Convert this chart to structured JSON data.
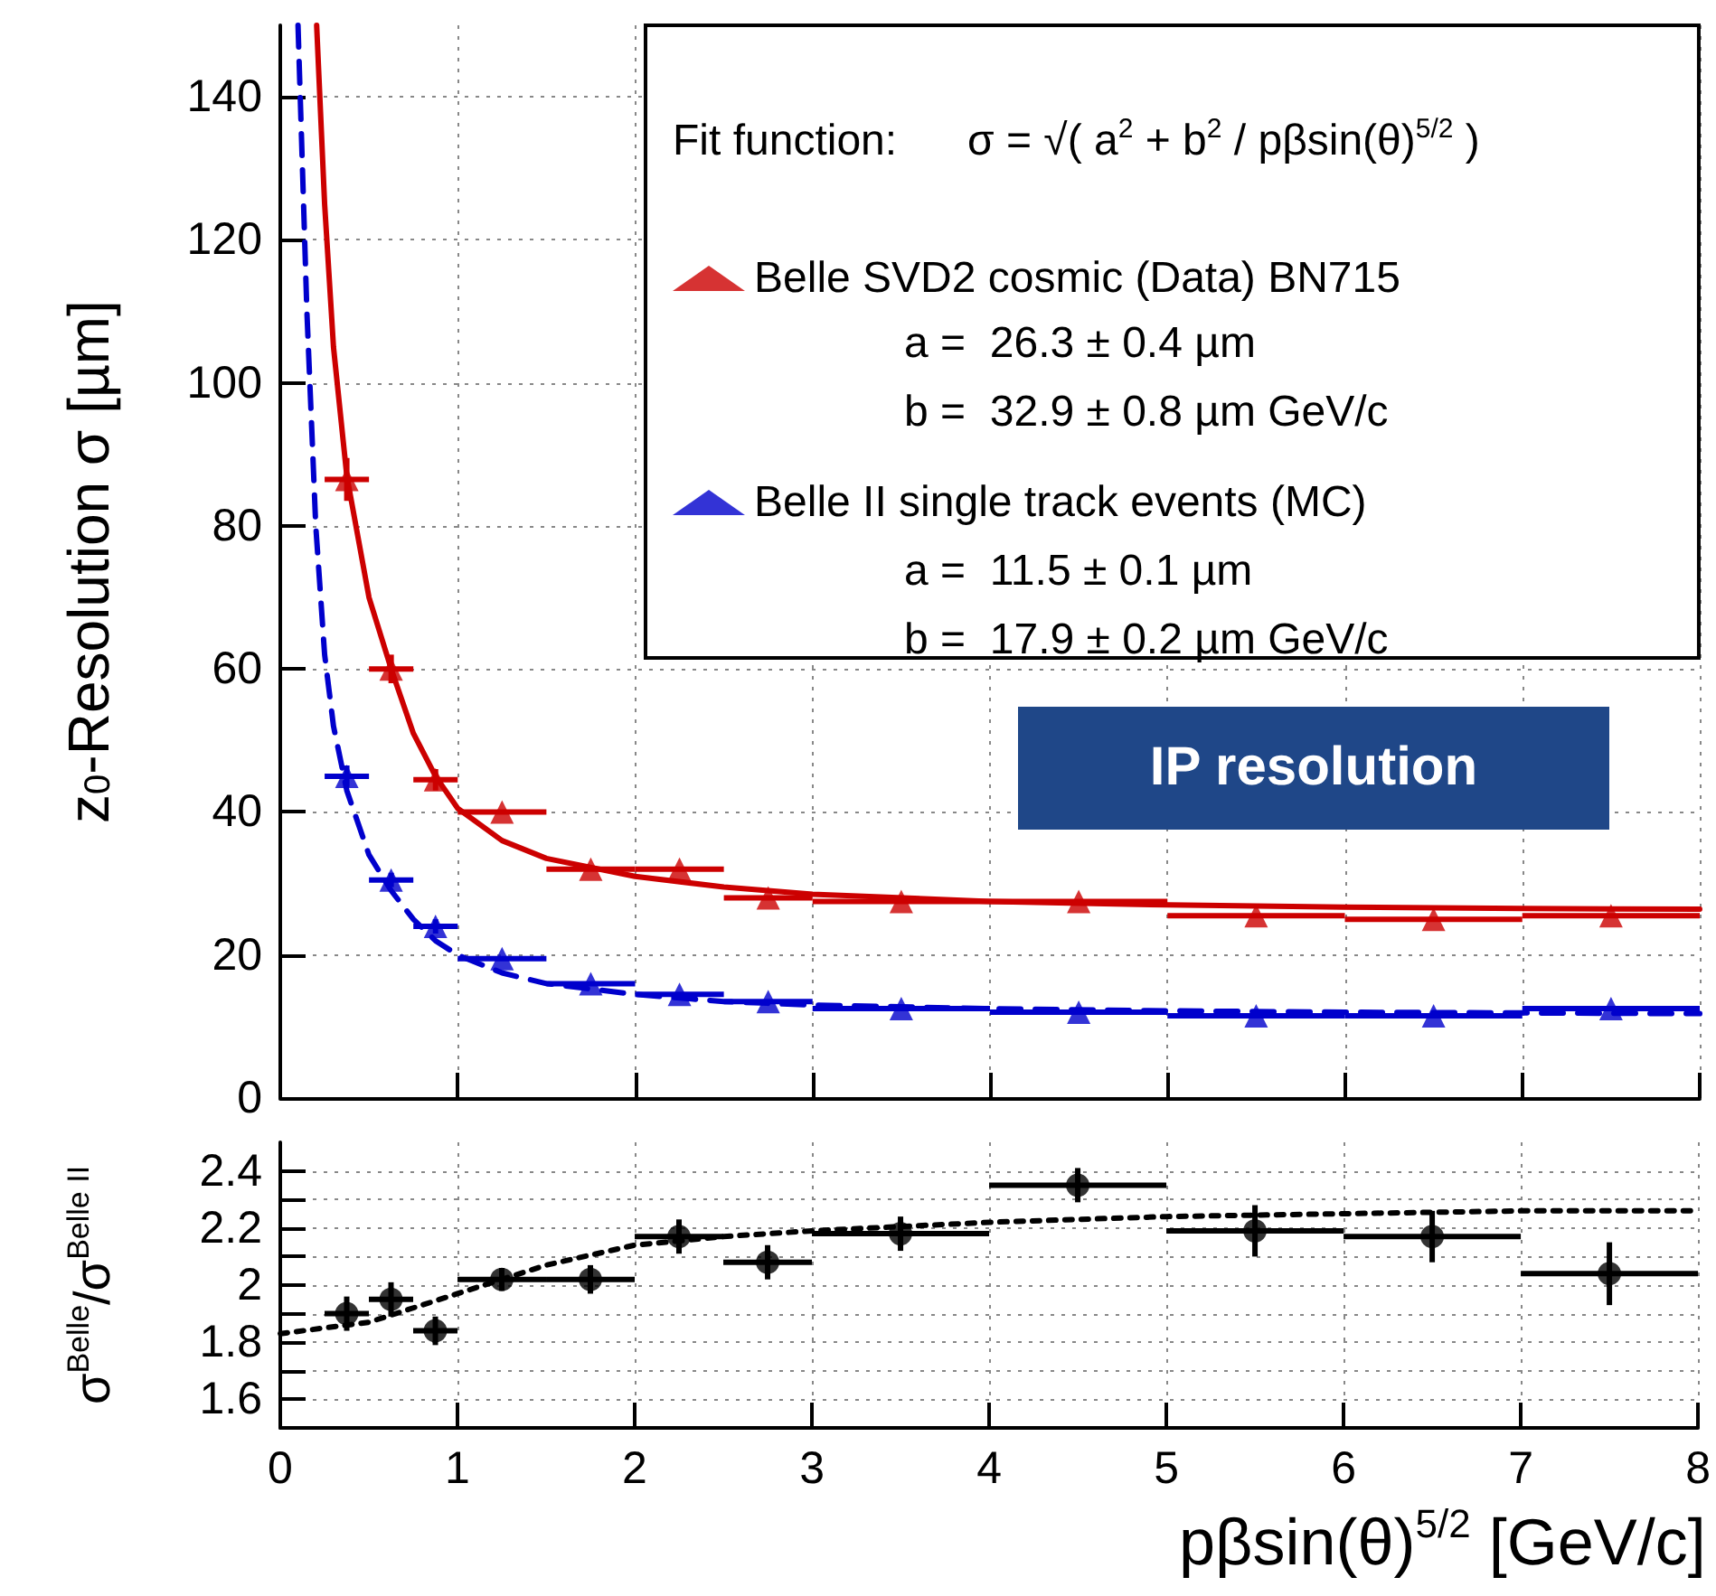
{
  "chart_data": [
    {
      "type": "scatter",
      "ylabel": "z$_{0}$-Resolution σ [µm]",
      "xlim": [
        0,
        8
      ],
      "xticks": [
        0,
        1,
        2,
        3,
        4,
        5,
        6,
        7,
        8
      ],
      "ylim": [
        0,
        150
      ],
      "yticks": [
        0,
        20,
        40,
        60,
        80,
        100,
        120,
        140
      ],
      "tick_labels": "y",
      "grid": true,
      "legend": "top right",
      "annotations": [
        "Fit function:",
        "σ = √( a$^{2}$ + b$^{2}$ / pβsin(θ)$^{5/2}$ )",
        "a =  26.3 ± 0.4 µm",
        "b =  32.9 ± 0.8 µm GeV/c",
        "a =  11.5 ± 0.1 µm",
        "b =  17.9 ± 0.2 µm GeV/c",
        "IP resolution"
      ],
      "series": [
        {
          "name": "Belle SVD2 cosmic (Data) BN715",
          "color": "#cc0000",
          "marker": "triangle",
          "x": [
            0.375,
            0.625,
            0.875,
            1.25,
            1.75,
            2.25,
            2.75,
            3.5,
            4.5,
            5.5,
            6.5,
            7.5
          ],
          "values": [
            86.5,
            60,
            44.5,
            40,
            32,
            32,
            28,
            27.5,
            27.5,
            25.5,
            25,
            25.5
          ],
          "errors": [
            3,
            2,
            1.5,
            null,
            null,
            null,
            null,
            null,
            null,
            null,
            null,
            null
          ],
          "xerrors": [
            0.125,
            0.125,
            0.125,
            0.25,
            0.25,
            0.25,
            0.25,
            0.5,
            0.5,
            0.5,
            0.5,
            0.5
          ]
        },
        {
          "name": "Belle II single track events (MC)",
          "color": "#0000cc",
          "marker": "triangle",
          "x": [
            0.375,
            0.625,
            0.875,
            1.25,
            1.75,
            2.25,
            2.75,
            3.5,
            4.5,
            5.5,
            6.5,
            7.5
          ],
          "values": [
            45,
            30.5,
            24,
            19.5,
            16,
            14.5,
            13.5,
            12.5,
            12,
            11.5,
            11.5,
            12.5
          ],
          "errors": [
            1.5,
            1,
            1,
            null,
            null,
            null,
            null,
            null,
            null,
            null,
            null,
            null
          ],
          "xerrors": [
            0.125,
            0.125,
            0.125,
            0.25,
            0.25,
            0.25,
            0.25,
            0.5,
            0.5,
            0.5,
            0.5,
            0.5
          ]
        },
        {
          "type": "line",
          "color": "#cc0000",
          "marker": "none",
          "line_style": "solid",
          "x": [
            0.205,
            0.25,
            0.3,
            0.375,
            0.5,
            0.625,
            0.75,
            0.875,
            1,
            1.25,
            1.5,
            2,
            2.5,
            3,
            4,
            5,
            6,
            7,
            8
          ],
          "values": [
            150,
            125,
            105,
            87,
            70,
            60,
            51,
            45,
            40.5,
            36,
            33.5,
            31,
            29.5,
            28.5,
            27.5,
            27,
            26.7,
            26.5,
            26.4
          ]
        },
        {
          "type": "line",
          "color": "#0000cc",
          "marker": "none",
          "line_style": "dashed",
          "x": [
            0.1,
            0.15,
            0.2,
            0.25,
            0.3,
            0.375,
            0.5,
            0.625,
            0.75,
            0.875,
            1,
            1.25,
            1.5,
            2,
            2.5,
            3,
            4,
            5,
            6,
            8
          ],
          "values": [
            150,
            110,
            80,
            62,
            52,
            43,
            34,
            29,
            25,
            22,
            20,
            17.5,
            16,
            14.5,
            13.5,
            13,
            12.5,
            12.2,
            12,
            11.8
          ]
        }
      ]
    },
    {
      "type": "scatter",
      "xlabel": "pβsin(θ)$^{5/2}$ [GeV/c]",
      "ylabel": "σ$^{Belle}$/σ$^{Belle II}$",
      "xlim": [
        0,
        8
      ],
      "xticks": [
        0,
        1,
        2,
        3,
        4,
        5,
        6,
        7,
        8
      ],
      "ylim": [
        1.5,
        2.5
      ],
      "yticks": [
        1.6,
        {
          "value": 1.7,
          "label": null
        },
        1.8,
        {
          "value": 1.9,
          "label": null
        },
        2,
        {
          "value": 2.1,
          "label": null
        },
        2.2,
        {
          "value": 2.3,
          "label": null
        },
        2.4
      ],
      "grid": true,
      "series": [
        {
          "color": "#000000",
          "marker": "circle",
          "x": [
            0.375,
            0.625,
            0.875,
            1.25,
            1.75,
            2.25,
            2.75,
            3.5,
            4.5,
            5.5,
            6.5,
            7.5
          ],
          "values": [
            1.9,
            1.95,
            1.84,
            2.02,
            2.02,
            2.17,
            2.08,
            2.18,
            2.35,
            2.19,
            2.17,
            2.04
          ],
          "errors": [
            0.06,
            0.06,
            0.05,
            0.04,
            0.05,
            0.06,
            0.06,
            0.06,
            0.06,
            0.09,
            0.09,
            0.11
          ],
          "xerrors": [
            0.125,
            0.125,
            0.125,
            0.25,
            0.25,
            0.25,
            0.25,
            0.5,
            0.5,
            0.5,
            0.5,
            0.5
          ]
        },
        {
          "type": "line",
          "color": "#000000",
          "marker": "none",
          "line_style": "dotted",
          "x": [
            0,
            0.5,
            1,
            1.5,
            2,
            2.5,
            3,
            4,
            5,
            6,
            7,
            8
          ],
          "values": [
            1.83,
            1.87,
            1.97,
            2.07,
            2.14,
            2.17,
            2.19,
            2.22,
            2.24,
            2.25,
            2.26,
            2.26
          ]
        }
      ]
    }
  ]
}
